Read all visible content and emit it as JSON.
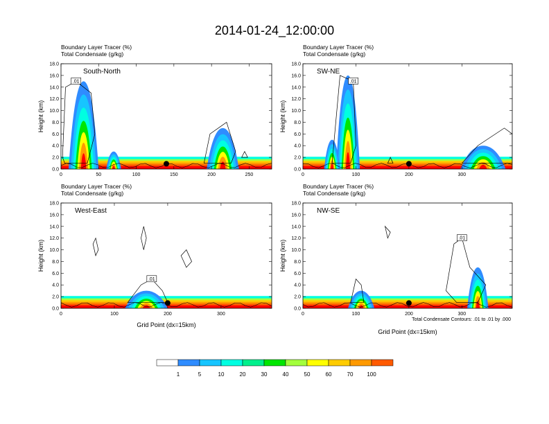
{
  "chart_data": {
    "type": "heatmap",
    "title": "2014-01-24_12:00:00",
    "fill_field": "Boundary Layer Tracer",
    "fill_units": "(%)",
    "contour_field": "Total Condensate",
    "contour_units": "(g/kg)",
    "ylabel": "Height (km)",
    "xlabel": "Grid Point (dx=15km)",
    "ylim": [
      0,
      18
    ],
    "yticks": [
      "0.0",
      "2.0",
      "4.0",
      "6.0",
      "8.0",
      "10.0",
      "12.0",
      "14.0",
      "16.0",
      "18.0"
    ],
    "contour_note": "Total Condensate Contours: .01 to .01 by .000",
    "contour_label": ".01",
    "colorbar": {
      "levels": [
        "1",
        "5",
        "10",
        "20",
        "30",
        "40",
        "50",
        "60",
        "70",
        "100"
      ],
      "colors": [
        "#ffffff",
        "#2f8cff",
        "#17c5ff",
        "#00ffe1",
        "#00f08c",
        "#00e600",
        "#a3ff3c",
        "#ffff00",
        "#ffcc00",
        "#ff9a00",
        "#ff5a00",
        "#ff0000"
      ]
    },
    "panels": [
      {
        "name": "South-North",
        "xmax": 280,
        "xticks": [
          0,
          50,
          100,
          150,
          200,
          250
        ],
        "marker_x": 140
      },
      {
        "name": "SW-NE",
        "xmax": 395,
        "xticks": [
          0,
          100,
          200,
          300
        ],
        "marker_x": 200
      },
      {
        "name": "West-East",
        "xmax": 395,
        "xticks": [
          0,
          100,
          200,
          300
        ],
        "marker_x": 200
      },
      {
        "name": "NW-SE",
        "xmax": 395,
        "xticks": [
          0,
          100,
          200,
          300
        ],
        "marker_x": 200
      }
    ]
  }
}
